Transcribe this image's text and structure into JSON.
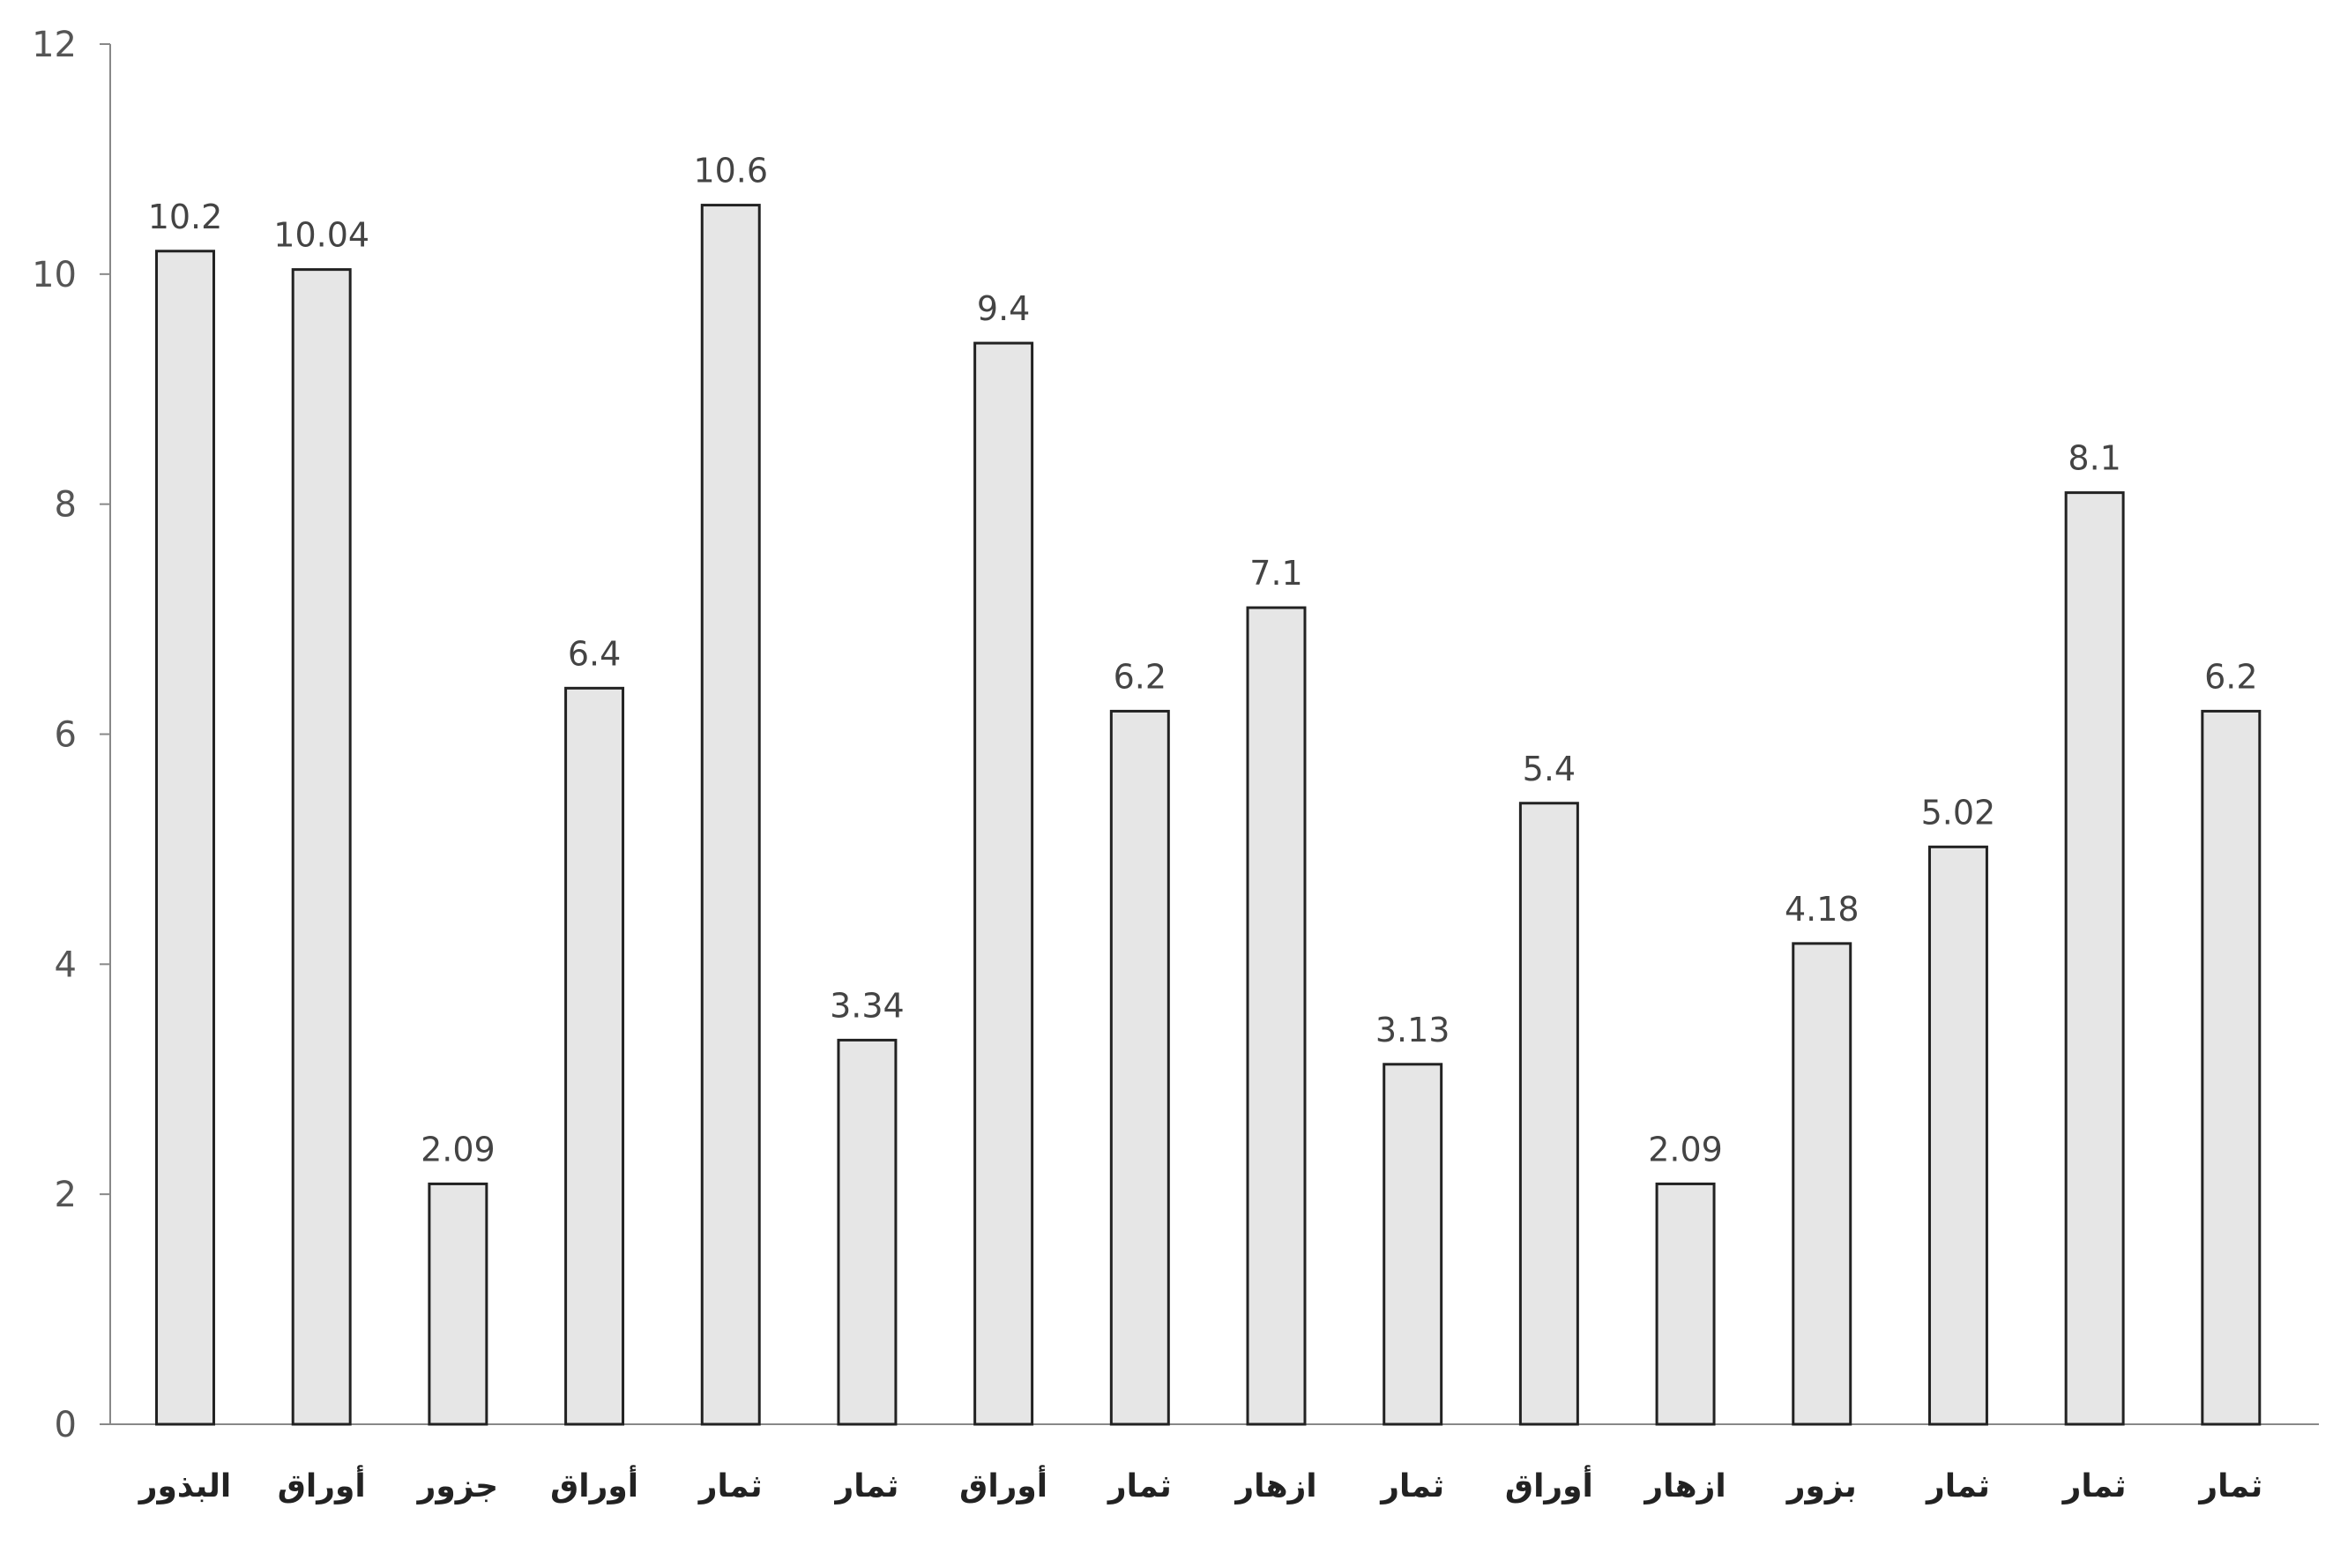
{
  "chart_data": {
    "type": "bar",
    "categories": [
      "البذور",
      "أوراق",
      "جزور",
      "أوراق",
      "ثمار",
      "ثمار",
      "أوراق",
      "ثمار",
      "ازهار",
      "ثمار",
      "أوراق",
      "ازهار",
      "بزور",
      "ثمار",
      "ثمار",
      "ثمار"
    ],
    "values": [
      10.2,
      10.04,
      2.09,
      6.4,
      10.6,
      3.34,
      9.4,
      6.2,
      7.1,
      3.13,
      5.4,
      2.09,
      4.18,
      5.02,
      8.1,
      6.2
    ],
    "data_labels": [
      "10.2",
      "10.04",
      "2.09",
      "6.4",
      "10.6",
      "3.34",
      "9.4",
      "6.2",
      "7.1",
      "3.13",
      "5.4",
      "2.09",
      "4.18",
      "5.02",
      "8.1",
      "6.2"
    ],
    "title": "",
    "xlabel": "",
    "ylabel": "",
    "ylim": [
      0,
      12
    ],
    "yticks": [
      0,
      2,
      4,
      6,
      8,
      10,
      12
    ],
    "grid": false,
    "bar_fill": "#e6e6e6",
    "bar_stroke": "#222222",
    "axis_color": "#888888"
  }
}
